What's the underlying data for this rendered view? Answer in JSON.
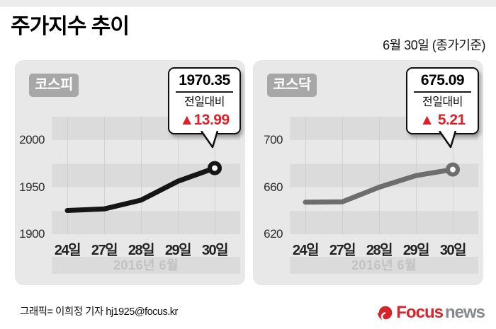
{
  "header": {
    "title": "주가지수 추이",
    "date_note": "6월 30일 (종가기준)"
  },
  "footer": {
    "credit": "그래픽= 이희정 기자 hj1925@focus.kr",
    "logo": {
      "icon": "focus-swirl-icon",
      "word_primary": "Focus",
      "word_secondary": "news",
      "color_primary": "#d7242b",
      "color_secondary": "#85898d"
    }
  },
  "colors": {
    "accent_up_red": "#e02028",
    "panel_bg": "#e8e8e8",
    "stripe": "#dbdbdb",
    "kospi_line": "#151515",
    "kosdaq_line": "#6d6d6d"
  },
  "chart_data": [
    {
      "type": "line",
      "title": "코스피",
      "categories": [
        "24일",
        "27일",
        "28일",
        "29일",
        "30일"
      ],
      "values": [
        1925.24,
        1926.85,
        1936.22,
        1956.36,
        1970.35
      ],
      "yticks": [
        1900,
        1950,
        2000
      ],
      "ylim": [
        1900,
        2025
      ],
      "x_axis_title": "2016년 6월",
      "line_color": "#151515",
      "grid": "horizontal-bands",
      "legend": "none",
      "callout": {
        "value": "1970.35",
        "label": "전일대비",
        "change_display": "▲13.99",
        "change": 13.99,
        "direction": "up"
      }
    },
    {
      "type": "line",
      "title": "코스닥",
      "categories": [
        "24일",
        "27일",
        "28일",
        "29일",
        "30일"
      ],
      "values": [
        647.2,
        647.5,
        660.0,
        669.88,
        675.09
      ],
      "yticks": [
        620,
        660,
        700
      ],
      "ylim": [
        620,
        720
      ],
      "x_axis_title": "2016년 6월",
      "line_color": "#6d6d6d",
      "grid": "horizontal-bands",
      "legend": "none",
      "callout": {
        "value": "675.09",
        "label": "전일대비",
        "change_display": "▲ 5.21",
        "change": 5.21,
        "direction": "up"
      }
    }
  ]
}
